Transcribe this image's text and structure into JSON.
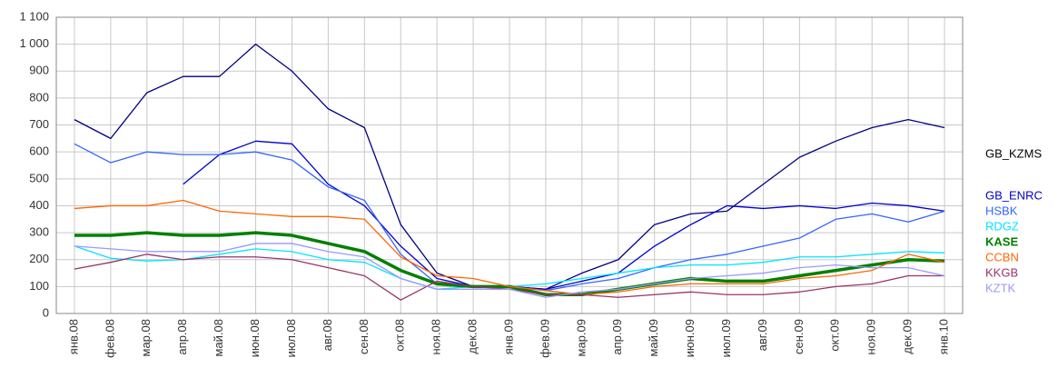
{
  "chart_data": {
    "type": "line",
    "categories": [
      "янв.08",
      "фев.08",
      "мар.08",
      "апр.08",
      "май.08",
      "июн.08",
      "июл.08",
      "авг.08",
      "сен.08",
      "окт.08",
      "ноя.08",
      "дек.08",
      "янв.09",
      "фев.09",
      "мар.09",
      "апр.09",
      "май.09",
      "июн.09",
      "июл.09",
      "авг.09",
      "сен.09",
      "окт.09",
      "ноя.09",
      "дек.09",
      "янв.10"
    ],
    "series": [
      {
        "name": "GB_KZMS",
        "color": "#000080",
        "values": [
          720,
          650,
          820,
          880,
          880,
          1000,
          900,
          760,
          690,
          330,
          150,
          100,
          100,
          90,
          150,
          200,
          330,
          370,
          380,
          480,
          580,
          640,
          690,
          720,
          690
        ]
      },
      {
        "name": "GB_ENRC",
        "color": "#0000cc",
        "values": [
          null,
          null,
          null,
          480,
          590,
          640,
          630,
          480,
          400,
          250,
          130,
          100,
          100,
          90,
          120,
          150,
          250,
          330,
          400,
          390,
          400,
          390,
          410,
          400,
          380
        ]
      },
      {
        "name": "HSBK",
        "color": "#3366ff",
        "values": [
          630,
          560,
          600,
          590,
          590,
          600,
          570,
          470,
          420,
          220,
          110,
          100,
          100,
          85,
          110,
          130,
          170,
          200,
          220,
          250,
          280,
          350,
          370,
          340,
          380
        ]
      },
      {
        "name": "RDGZ",
        "color": "#00e5ff",
        "values": [
          250,
          205,
          195,
          200,
          220,
          240,
          230,
          200,
          190,
          130,
          90,
          100,
          100,
          110,
          130,
          150,
          170,
          180,
          180,
          190,
          210,
          210,
          220,
          230,
          225
        ]
      },
      {
        "name": "KASE",
        "color": "#008000",
        "values": [
          290,
          290,
          300,
          290,
          290,
          300,
          290,
          260,
          230,
          160,
          110,
          100,
          100,
          70,
          70,
          90,
          110,
          130,
          120,
          120,
          140,
          160,
          180,
          200,
          195
        ]
      },
      {
        "name": "CCBN",
        "color": "#ff6600",
        "values": [
          390,
          400,
          400,
          420,
          380,
          370,
          360,
          360,
          350,
          210,
          140,
          130,
          100,
          85,
          70,
          80,
          100,
          110,
          110,
          110,
          130,
          140,
          160,
          220,
          190
        ]
      },
      {
        "name": "KKGB",
        "color": "#993366",
        "values": [
          165,
          190,
          220,
          200,
          210,
          210,
          200,
          170,
          140,
          50,
          120,
          100,
          90,
          70,
          70,
          60,
          70,
          80,
          70,
          70,
          80,
          100,
          110,
          140,
          140
        ]
      },
      {
        "name": "KZTK",
        "color": "#9999ff",
        "values": [
          250,
          240,
          230,
          230,
          230,
          260,
          260,
          230,
          210,
          130,
          90,
          90,
          90,
          60,
          80,
          90,
          110,
          130,
          140,
          150,
          170,
          180,
          170,
          170,
          140
        ]
      }
    ],
    "ylim": [
      0,
      1100
    ],
    "yticks": [
      0,
      100,
      200,
      300,
      400,
      500,
      600,
      700,
      800,
      900,
      {
        "value": 1000,
        "label": "1 000"
      },
      {
        "value": 1100,
        "label": "1 100"
      }
    ],
    "grid": true
  }
}
